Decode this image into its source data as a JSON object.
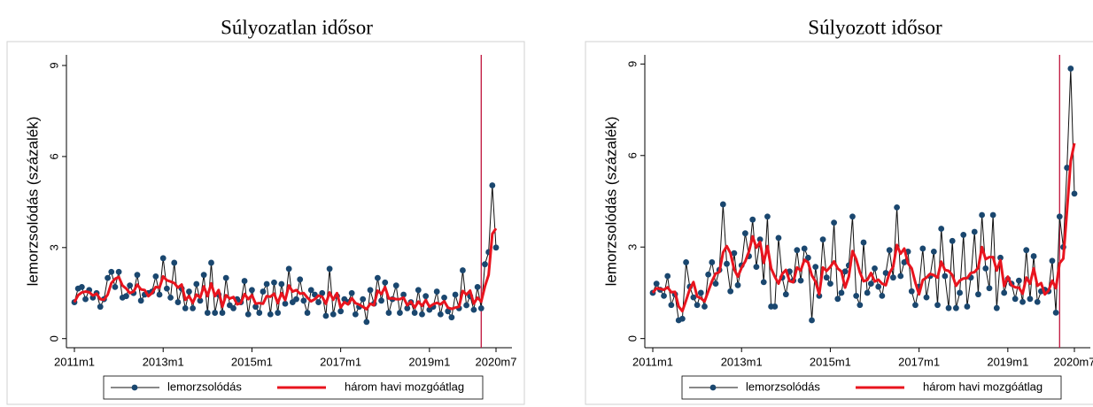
{
  "chart_data": [
    {
      "type": "line",
      "title": "Súlyozatlan idősor",
      "y_label": "lemorzsolódás (százalék)",
      "x": [
        "2011m1",
        "2011m2",
        "2011m3",
        "2011m4",
        "2011m5",
        "2011m6",
        "2011m7",
        "2011m8",
        "2011m9",
        "2011m10",
        "2011m11",
        "2011m12",
        "2012m1",
        "2012m2",
        "2012m3",
        "2012m4",
        "2012m5",
        "2012m6",
        "2012m7",
        "2012m8",
        "2012m9",
        "2012m10",
        "2012m11",
        "2012m12",
        "2013m1",
        "2013m2",
        "2013m3",
        "2013m4",
        "2013m5",
        "2013m6",
        "2013m7",
        "2013m8",
        "2013m9",
        "2013m10",
        "2013m11",
        "2013m12",
        "2014m1",
        "2014m2",
        "2014m3",
        "2014m4",
        "2014m5",
        "2014m6",
        "2014m7",
        "2014m8",
        "2014m9",
        "2014m10",
        "2014m11",
        "2014m12",
        "2015m1",
        "2015m2",
        "2015m3",
        "2015m4",
        "2015m5",
        "2015m6",
        "2015m7",
        "2015m8",
        "2015m9",
        "2015m10",
        "2015m11",
        "2015m12",
        "2016m1",
        "2016m2",
        "2016m3",
        "2016m4",
        "2016m5",
        "2016m6",
        "2016m7",
        "2016m8",
        "2016m9",
        "2016m10",
        "2016m11",
        "2016m12",
        "2017m1",
        "2017m2",
        "2017m3",
        "2017m4",
        "2017m5",
        "2017m6",
        "2017m7",
        "2017m8",
        "2017m9",
        "2017m10",
        "2017m11",
        "2017m12",
        "2018m1",
        "2018m2",
        "2018m3",
        "2018m4",
        "2018m5",
        "2018m6",
        "2018m7",
        "2018m8",
        "2018m9",
        "2018m10",
        "2018m11",
        "2018m12",
        "2019m1",
        "2019m2",
        "2019m3",
        "2019m4",
        "2019m5",
        "2019m6",
        "2019m7",
        "2019m8",
        "2019m9",
        "2019m10",
        "2019m11",
        "2019m12",
        "2020m1",
        "2020m2",
        "2020m3",
        "2020m4",
        "2020m5",
        "2020m6",
        "2020m7"
      ],
      "series": [
        {
          "name": "lemorzsolódás",
          "color": "#1a476f",
          "marker": true,
          "values": [
            1.2,
            1.65,
            1.7,
            1.3,
            1.6,
            1.35,
            1.5,
            1.05,
            1.3,
            2.0,
            2.2,
            1.7,
            2.2,
            1.35,
            1.4,
            1.75,
            1.5,
            2.1,
            1.25,
            1.45,
            1.5,
            1.55,
            2.05,
            1.45,
            2.65,
            1.65,
            1.35,
            2.5,
            1.2,
            1.65,
            1.0,
            1.55,
            1.0,
            1.8,
            1.25,
            2.1,
            0.85,
            2.5,
            0.85,
            1.45,
            0.85,
            2.0,
            1.1,
            1.0,
            1.3,
            1.2,
            1.9,
            0.8,
            1.6,
            1.05,
            0.85,
            1.55,
            1.8,
            0.8,
            1.85,
            0.85,
            1.8,
            1.15,
            2.3,
            1.2,
            1.3,
            1.95,
            1.25,
            0.85,
            1.6,
            1.45,
            1.2,
            1.5,
            0.75,
            2.3,
            0.8,
            1.4,
            0.9,
            1.3,
            1.2,
            1.5,
            0.8,
            1.05,
            1.3,
            0.55,
            1.6,
            1.15,
            2.0,
            1.25,
            1.85,
            0.85,
            1.3,
            1.75,
            0.85,
            1.45,
            1.0,
            1.2,
            0.85,
            1.6,
            0.8,
            1.4,
            0.95,
            1.05,
            1.55,
            0.8,
            1.35,
            0.9,
            0.7,
            1.45,
            1.0,
            2.25,
            1.1,
            1.4,
            0.95,
            1.7,
            1.0,
            2.45,
            2.85,
            5.05,
            3.0
          ]
        },
        {
          "name": "három havi mozgóátlag",
          "color": "#e8141e",
          "marker": false,
          "values": [
            1.2,
            1.43,
            1.52,
            1.55,
            1.53,
            1.42,
            1.48,
            1.3,
            1.28,
            1.45,
            1.83,
            1.97,
            2.03,
            1.75,
            1.65,
            1.5,
            1.55,
            1.78,
            1.62,
            1.6,
            1.4,
            1.5,
            1.7,
            1.68,
            2.05,
            1.92,
            1.88,
            1.83,
            1.68,
            1.78,
            1.28,
            1.4,
            1.18,
            1.45,
            1.35,
            1.72,
            1.4,
            1.82,
            1.4,
            1.6,
            1.05,
            1.43,
            1.32,
            1.37,
            1.13,
            1.17,
            1.47,
            1.3,
            1.43,
            1.15,
            1.17,
            1.15,
            1.4,
            1.38,
            1.48,
            1.17,
            1.5,
            1.27,
            1.75,
            1.55,
            1.6,
            1.48,
            1.5,
            1.35,
            1.23,
            1.3,
            1.42,
            1.38,
            1.15,
            1.52,
            1.28,
            1.5,
            1.03,
            1.2,
            1.13,
            1.33,
            1.17,
            1.12,
            1.05,
            0.97,
            1.15,
            1.1,
            1.58,
            1.47,
            1.7,
            1.32,
            1.33,
            1.3,
            1.3,
            1.35,
            1.1,
            1.22,
            1.02,
            1.22,
            1.08,
            1.27,
            1.05,
            1.13,
            1.18,
            1.13,
            1.23,
            1.02,
            0.98,
            1.02,
            1.05,
            1.57,
            1.45,
            1.58,
            1.15,
            1.35,
            1.22,
            1.72,
            2.1,
            3.45,
            3.63
          ]
        }
      ],
      "reference_line": {
        "x": "2020m3",
        "color": "#c0143c"
      },
      "ylim": [
        -0.3,
        9.35
      ],
      "yticks": [
        0,
        3,
        6,
        9
      ],
      "xticks": [
        "2011m1",
        "2013m1",
        "2015m1",
        "2017m1",
        "2019m1",
        "2020m7"
      ],
      "legend": "bottom",
      "grid": false
    },
    {
      "type": "line",
      "title": "Súlyozott idősor",
      "y_label": "lemorzsolódás (százalék)",
      "x": [
        "2011m1",
        "2011m2",
        "2011m3",
        "2011m4",
        "2011m5",
        "2011m6",
        "2011m7",
        "2011m8",
        "2011m9",
        "2011m10",
        "2011m11",
        "2011m12",
        "2012m1",
        "2012m2",
        "2012m3",
        "2012m4",
        "2012m5",
        "2012m6",
        "2012m7",
        "2012m8",
        "2012m9",
        "2012m10",
        "2012m11",
        "2012m12",
        "2013m1",
        "2013m2",
        "2013m3",
        "2013m4",
        "2013m5",
        "2013m6",
        "2013m7",
        "2013m8",
        "2013m9",
        "2013m10",
        "2013m11",
        "2013m12",
        "2014m1",
        "2014m2",
        "2014m3",
        "2014m4",
        "2014m5",
        "2014m6",
        "2014m7",
        "2014m8",
        "2014m9",
        "2014m10",
        "2014m11",
        "2014m12",
        "2015m1",
        "2015m2",
        "2015m3",
        "2015m4",
        "2015m5",
        "2015m6",
        "2015m7",
        "2015m8",
        "2015m9",
        "2015m10",
        "2015m11",
        "2015m12",
        "2016m1",
        "2016m2",
        "2016m3",
        "2016m4",
        "2016m5",
        "2016m6",
        "2016m7",
        "2016m8",
        "2016m9",
        "2016m10",
        "2016m11",
        "2016m12",
        "2017m1",
        "2017m2",
        "2017m3",
        "2017m4",
        "2017m5",
        "2017m6",
        "2017m7",
        "2017m8",
        "2017m9",
        "2017m10",
        "2017m11",
        "2017m12",
        "2018m1",
        "2018m2",
        "2018m3",
        "2018m4",
        "2018m5",
        "2018m6",
        "2018m7",
        "2018m8",
        "2018m9",
        "2018m10",
        "2018m11",
        "2018m12",
        "2019m1",
        "2019m2",
        "2019m3",
        "2019m4",
        "2019m5",
        "2019m6",
        "2019m7",
        "2019m8",
        "2019m9",
        "2019m10",
        "2019m11",
        "2019m12",
        "2020m1",
        "2020m2",
        "2020m3",
        "2020m4",
        "2020m5",
        "2020m6",
        "2020m7"
      ],
      "series": [
        {
          "name": "lemorzsolódás",
          "color": "#1a476f",
          "marker": true,
          "values": [
            1.5,
            1.8,
            1.6,
            1.4,
            2.05,
            1.1,
            1.45,
            0.6,
            0.65,
            2.5,
            1.7,
            1.35,
            1.1,
            1.5,
            1.05,
            2.1,
            2.5,
            1.8,
            2.25,
            4.4,
            2.45,
            1.55,
            2.8,
            1.75,
            2.4,
            3.45,
            2.7,
            3.9,
            2.35,
            3.25,
            1.85,
            4.0,
            1.05,
            1.05,
            3.3,
            2.0,
            1.45,
            2.2,
            1.9,
            2.9,
            1.9,
            2.95,
            2.65,
            0.6,
            2.35,
            1.4,
            3.25,
            2.0,
            1.8,
            3.8,
            1.3,
            1.5,
            2.2,
            2.4,
            4.0,
            1.4,
            1.1,
            3.15,
            1.5,
            1.8,
            2.3,
            1.7,
            1.4,
            2.15,
            2.9,
            2.0,
            4.3,
            2.05,
            2.5,
            2.85,
            1.55,
            1.1,
            1.7,
            2.95,
            1.35,
            2.05,
            2.85,
            1.1,
            3.6,
            2.05,
            1.0,
            3.2,
            1.0,
            1.5,
            3.4,
            1.05,
            2.0,
            3.5,
            1.45,
            4.05,
            2.3,
            1.65,
            4.05,
            1.0,
            2.65,
            1.5,
            1.95,
            1.8,
            1.3,
            1.9,
            1.2,
            2.9,
            1.3,
            2.7,
            1.2,
            1.55,
            1.6,
            1.55,
            2.55,
            0.85,
            4.0,
            3.0,
            5.6,
            8.85,
            4.75
          ]
        },
        {
          "name": "három havi mozgóátlag",
          "color": "#e8141e",
          "marker": false,
          "values": [
            1.5,
            1.65,
            1.63,
            1.6,
            1.68,
            1.52,
            1.53,
            1.05,
            0.9,
            1.25,
            1.62,
            1.85,
            1.38,
            1.32,
            1.22,
            1.55,
            1.88,
            2.13,
            2.18,
            2.82,
            3.03,
            2.8,
            2.27,
            2.03,
            2.32,
            2.53,
            2.85,
            3.35,
            2.98,
            3.17,
            2.48,
            3.03,
            2.3,
            2.03,
            1.8,
            2.12,
            2.25,
            1.88,
            1.85,
            2.33,
            2.23,
            2.58,
            2.5,
            2.07,
            1.87,
            1.45,
            2.33,
            2.22,
            2.35,
            2.53,
            2.3,
            2.2,
            1.67,
            2.03,
            2.87,
            2.6,
            2.17,
            1.88,
            1.92,
            2.15,
            1.87,
            1.93,
            1.8,
            1.75,
            2.15,
            2.35,
            3.07,
            2.78,
            2.95,
            2.47,
            2.3,
            1.83,
            1.45,
            1.92,
            2.0,
            2.12,
            2.08,
            2.0,
            2.52,
            2.25,
            2.22,
            2.08,
            1.73,
            1.9,
            1.97,
            1.98,
            2.15,
            2.18,
            2.32,
            3.0,
            2.6,
            2.67,
            2.67,
            2.23,
            2.57,
            1.72,
            2.03,
            1.75,
            1.68,
            1.67,
            1.47,
            2.0,
            1.8,
            2.3,
            1.73,
            1.82,
            1.45,
            1.57,
            1.9,
            1.65,
            2.47,
            2.62,
            4.2,
            5.82,
            6.4
          ]
        }
      ],
      "reference_line": {
        "x": "2020m3",
        "color": "#c0143c"
      },
      "ylim": [
        -0.3,
        9.3
      ],
      "yticks": [
        0,
        3,
        6,
        9
      ],
      "xticks": [
        "2011m1",
        "2013m1",
        "2015m1",
        "2017m1",
        "2019m1",
        "2020m7"
      ],
      "legend": "bottom",
      "grid": false
    }
  ]
}
